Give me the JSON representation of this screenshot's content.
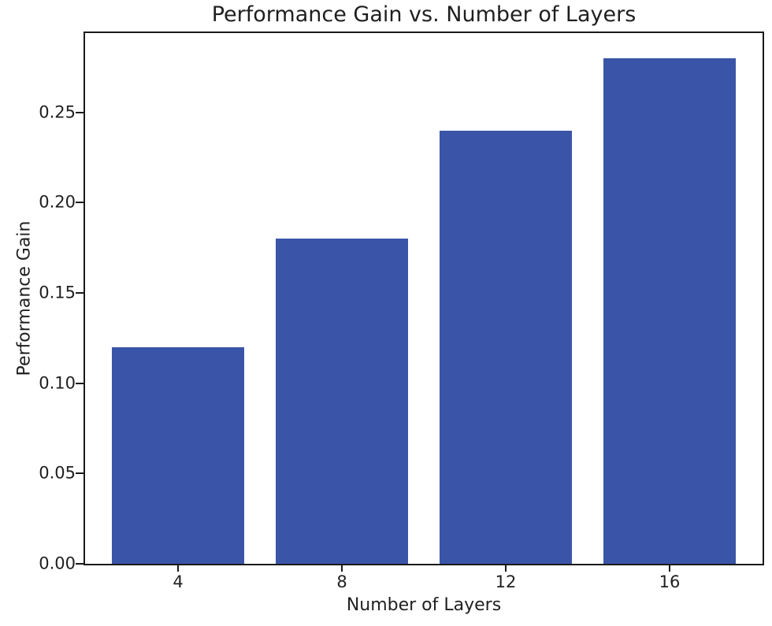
{
  "figure": {
    "background": "#ffffff",
    "text_color": "#1f1f1f",
    "spine_color": "#1a1a1a"
  },
  "chart_data": {
    "type": "bar",
    "title": "Performance Gain vs. Number of Layers",
    "xlabel": "Number of Layers",
    "ylabel": "Performance Gain",
    "categories": [
      "4",
      "8",
      "12",
      "16"
    ],
    "values": [
      0.12,
      0.18,
      0.24,
      0.28
    ],
    "ylim": [
      0,
      0.294
    ],
    "yticks": [
      0,
      0.05,
      0.1,
      0.15,
      0.2,
      0.25
    ],
    "ytick_labels": [
      "0.00",
      "0.05",
      "0.10",
      "0.15",
      "0.20",
      "0.25"
    ],
    "bar_color": "#3a55a8",
    "grid": false,
    "legend_position": "none"
  }
}
